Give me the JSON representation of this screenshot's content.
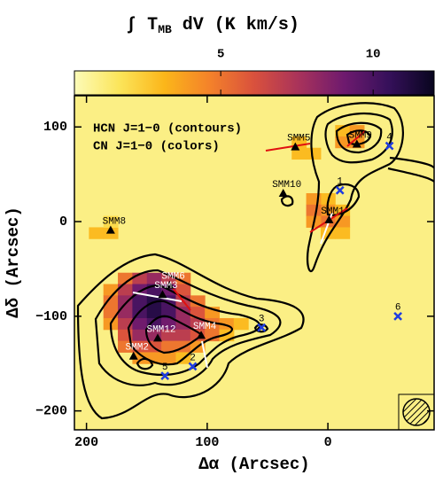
{
  "chart_data": {
    "type": "map",
    "colorbar_label": {
      "pre": "∫ T",
      "sub": "MB",
      "post": " dV (K km/s)"
    },
    "clim": [
      0.2,
      12
    ],
    "cticks": [
      5,
      10
    ],
    "colormap": [
      "#fcfbb8",
      "#fbe55a",
      "#fbb61a",
      "#f4822a",
      "#d9513d",
      "#a8325b",
      "#6e1a6e",
      "#35105a",
      "#08051e"
    ],
    "annotations": [
      "HCN J=1−0 (contours)",
      "CN J=1−0 (colors)"
    ],
    "xlabel": "Δα (Arcsec)",
    "ylabel": "Δδ (Arcsec)",
    "xlim": [
      210,
      -88
    ],
    "ylim": [
      -220,
      133
    ],
    "xticks": [
      200,
      100,
      0
    ],
    "yticks": [
      100,
      0,
      {
        "value": -100,
        "label": "−100"
      },
      {
        "value": -200,
        "label": "−200"
      }
    ],
    "background": 1,
    "image": {
      "x": [
        168,
        156,
        144,
        132,
        120,
        180,
        168,
        156,
        144,
        132,
        120,
        180,
        168,
        156,
        144,
        132,
        120,
        108,
        180,
        168,
        156,
        144,
        132,
        120,
        108,
        96,
        180,
        168,
        156,
        144,
        132,
        120,
        108,
        96,
        84,
        72,
        168,
        156,
        144,
        132,
        120,
        108,
        96,
        84,
        168,
        156,
        144,
        132,
        120,
        108,
        156,
        144,
        132,
        120,
        0,
        12,
        0,
        12,
        -12,
        0,
        12,
        -12,
        0,
        -12,
        -12,
        -24,
        24,
        -12,
        -24,
        24,
        12,
        192,
        180,
        180
      ],
      "y": [
        -60,
        -60,
        -60,
        -60,
        -60,
        -72,
        -72,
        -72,
        -72,
        -72,
        -72,
        -84,
        -84,
        -84,
        -84,
        -84,
        -84,
        -84,
        -96,
        -96,
        -96,
        -96,
        -96,
        -96,
        -96,
        -96,
        -108,
        -108,
        -108,
        -108,
        -108,
        -108,
        -108,
        -108,
        -108,
        -108,
        -120,
        -120,
        -120,
        -120,
        -120,
        -120,
        -120,
        -120,
        -132,
        -132,
        -132,
        -132,
        -132,
        -132,
        -144,
        -144,
        -144,
        -144,
        24,
        24,
        12,
        12,
        12,
        0,
        0,
        0,
        -12,
        -12,
        96,
        96,
        84,
        84,
        84,
        72,
        72,
        -12,
        -12,
        0
      ],
      "values": [
        5,
        7,
        8,
        7,
        5,
        4,
        7,
        9,
        10,
        9,
        6,
        5,
        8,
        10,
        11,
        10,
        7,
        5,
        5,
        8,
        10,
        11,
        10,
        8,
        6,
        4,
        4,
        7,
        9,
        10,
        9,
        8,
        7,
        5,
        4,
        3,
        6,
        8,
        8,
        7,
        7,
        6,
        5,
        3,
        5,
        6,
        6,
        5,
        5,
        4,
        4,
        4,
        4,
        3,
        3,
        4,
        4,
        5,
        3,
        5,
        4,
        4,
        3,
        3,
        3,
        4,
        3,
        4,
        4,
        3,
        3,
        3,
        3,
        2
      ]
    },
    "sources": {
      "labels": [
        "SMM8",
        "SMM5",
        "SMM9",
        "SMM10",
        "SMM1",
        "SMM6",
        "SMM3",
        "SMM12",
        "SMM4",
        "SMM2"
      ],
      "x": [
        180,
        27,
        -24,
        37,
        -1,
        131,
        137,
        141,
        105,
        161
      ],
      "y": [
        -9,
        79,
        82,
        30,
        2,
        -67,
        -77,
        -123,
        -120,
        -142
      ],
      "color": "#000000"
    },
    "positions": {
      "labels": [
        "1",
        "2",
        "3",
        "4",
        "5",
        "6"
      ],
      "x": [
        -10,
        112,
        55,
        -51,
        135,
        -58
      ],
      "y": [
        33,
        -153,
        -112,
        80,
        -163,
        -100
      ],
      "color": "#1f3de0"
    }
  }
}
